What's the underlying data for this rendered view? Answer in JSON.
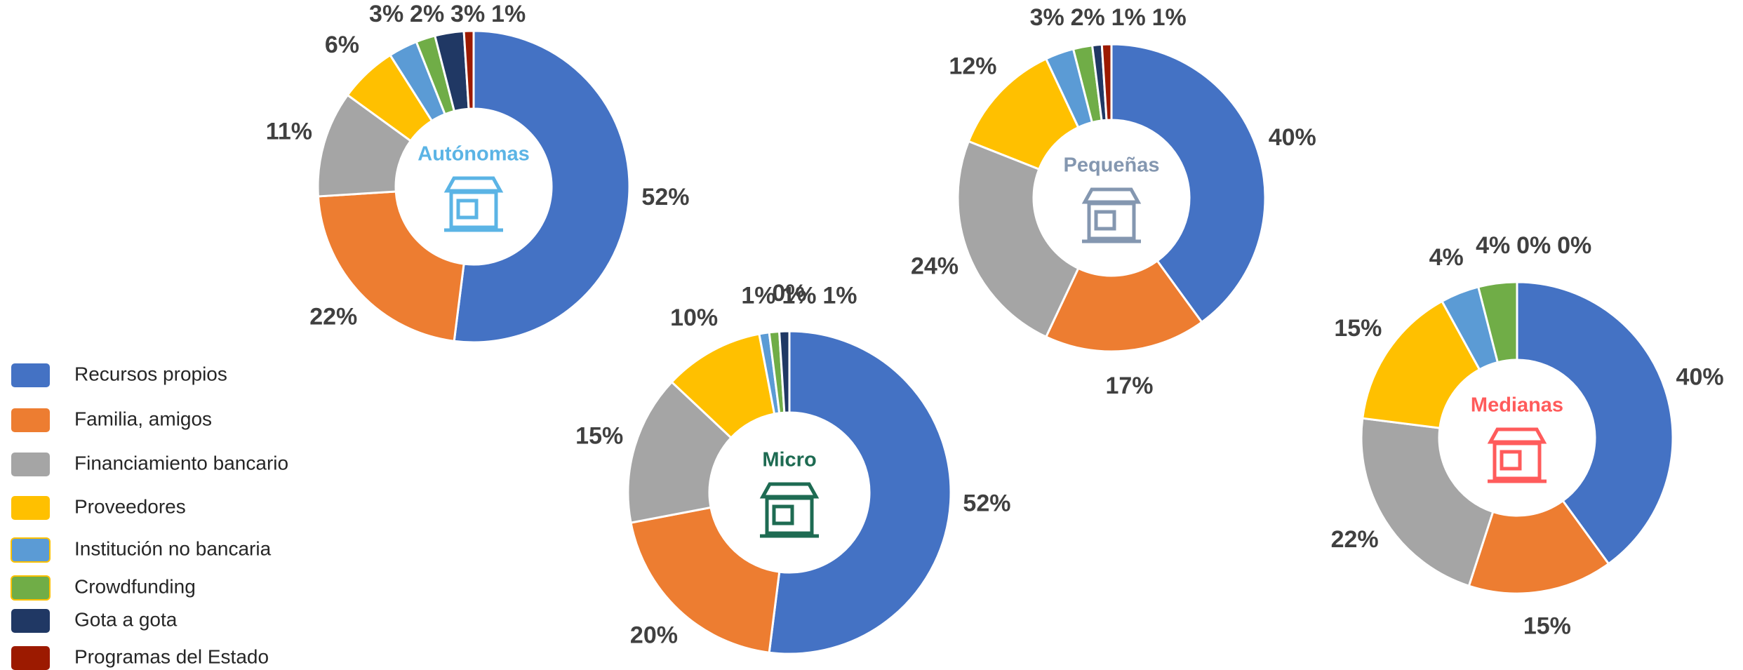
{
  "legend": {
    "categories": [
      "Recursos propios",
      "Familia, amigos",
      "Financiamiento bancario",
      "Proveedores",
      "Institución no bancaria",
      "Crowdfunding",
      "Gota a gota",
      "Programas del Estado"
    ],
    "colors": [
      "#4472c4",
      "#ed7d31",
      "#a5a5a5",
      "#ffc000",
      "#5b9bd5",
      "#70ad47",
      "#203864",
      "#9c1a00"
    ]
  },
  "chart_data": [
    {
      "type": "pie",
      "title": "Autónomas",
      "title_color": "#5bb4e5",
      "values": [
        52,
        22,
        11,
        6,
        3,
        2,
        3,
        1
      ],
      "value_labels": [
        "52%",
        "22%",
        "11%",
        "6%",
        "3%",
        "2%",
        "3%",
        "1%"
      ]
    },
    {
      "type": "pie",
      "title": "Micro",
      "title_color": "#1e6b52",
      "values": [
        52,
        20,
        15,
        10,
        1,
        1,
        1,
        0
      ],
      "value_labels": [
        "52%",
        "20%",
        "15%",
        "10%",
        "1%",
        "1%",
        "1%",
        "0%"
      ]
    },
    {
      "type": "pie",
      "title": "Pequeñas",
      "title_color": "#8497b0",
      "values": [
        40,
        17,
        24,
        12,
        3,
        2,
        1,
        1
      ],
      "value_labels": [
        "40%",
        "17%",
        "24%",
        "12%",
        "3%",
        "2%",
        "1%",
        "1%"
      ]
    },
    {
      "type": "pie",
      "title": "Medianas",
      "title_color": "#ff5b5b",
      "values": [
        40,
        15,
        22,
        15,
        4,
        4,
        0,
        0
      ],
      "value_labels": [
        "40%",
        "15%",
        "22%",
        "15%",
        "4%",
        "4%",
        "0%",
        "0%"
      ]
    }
  ]
}
